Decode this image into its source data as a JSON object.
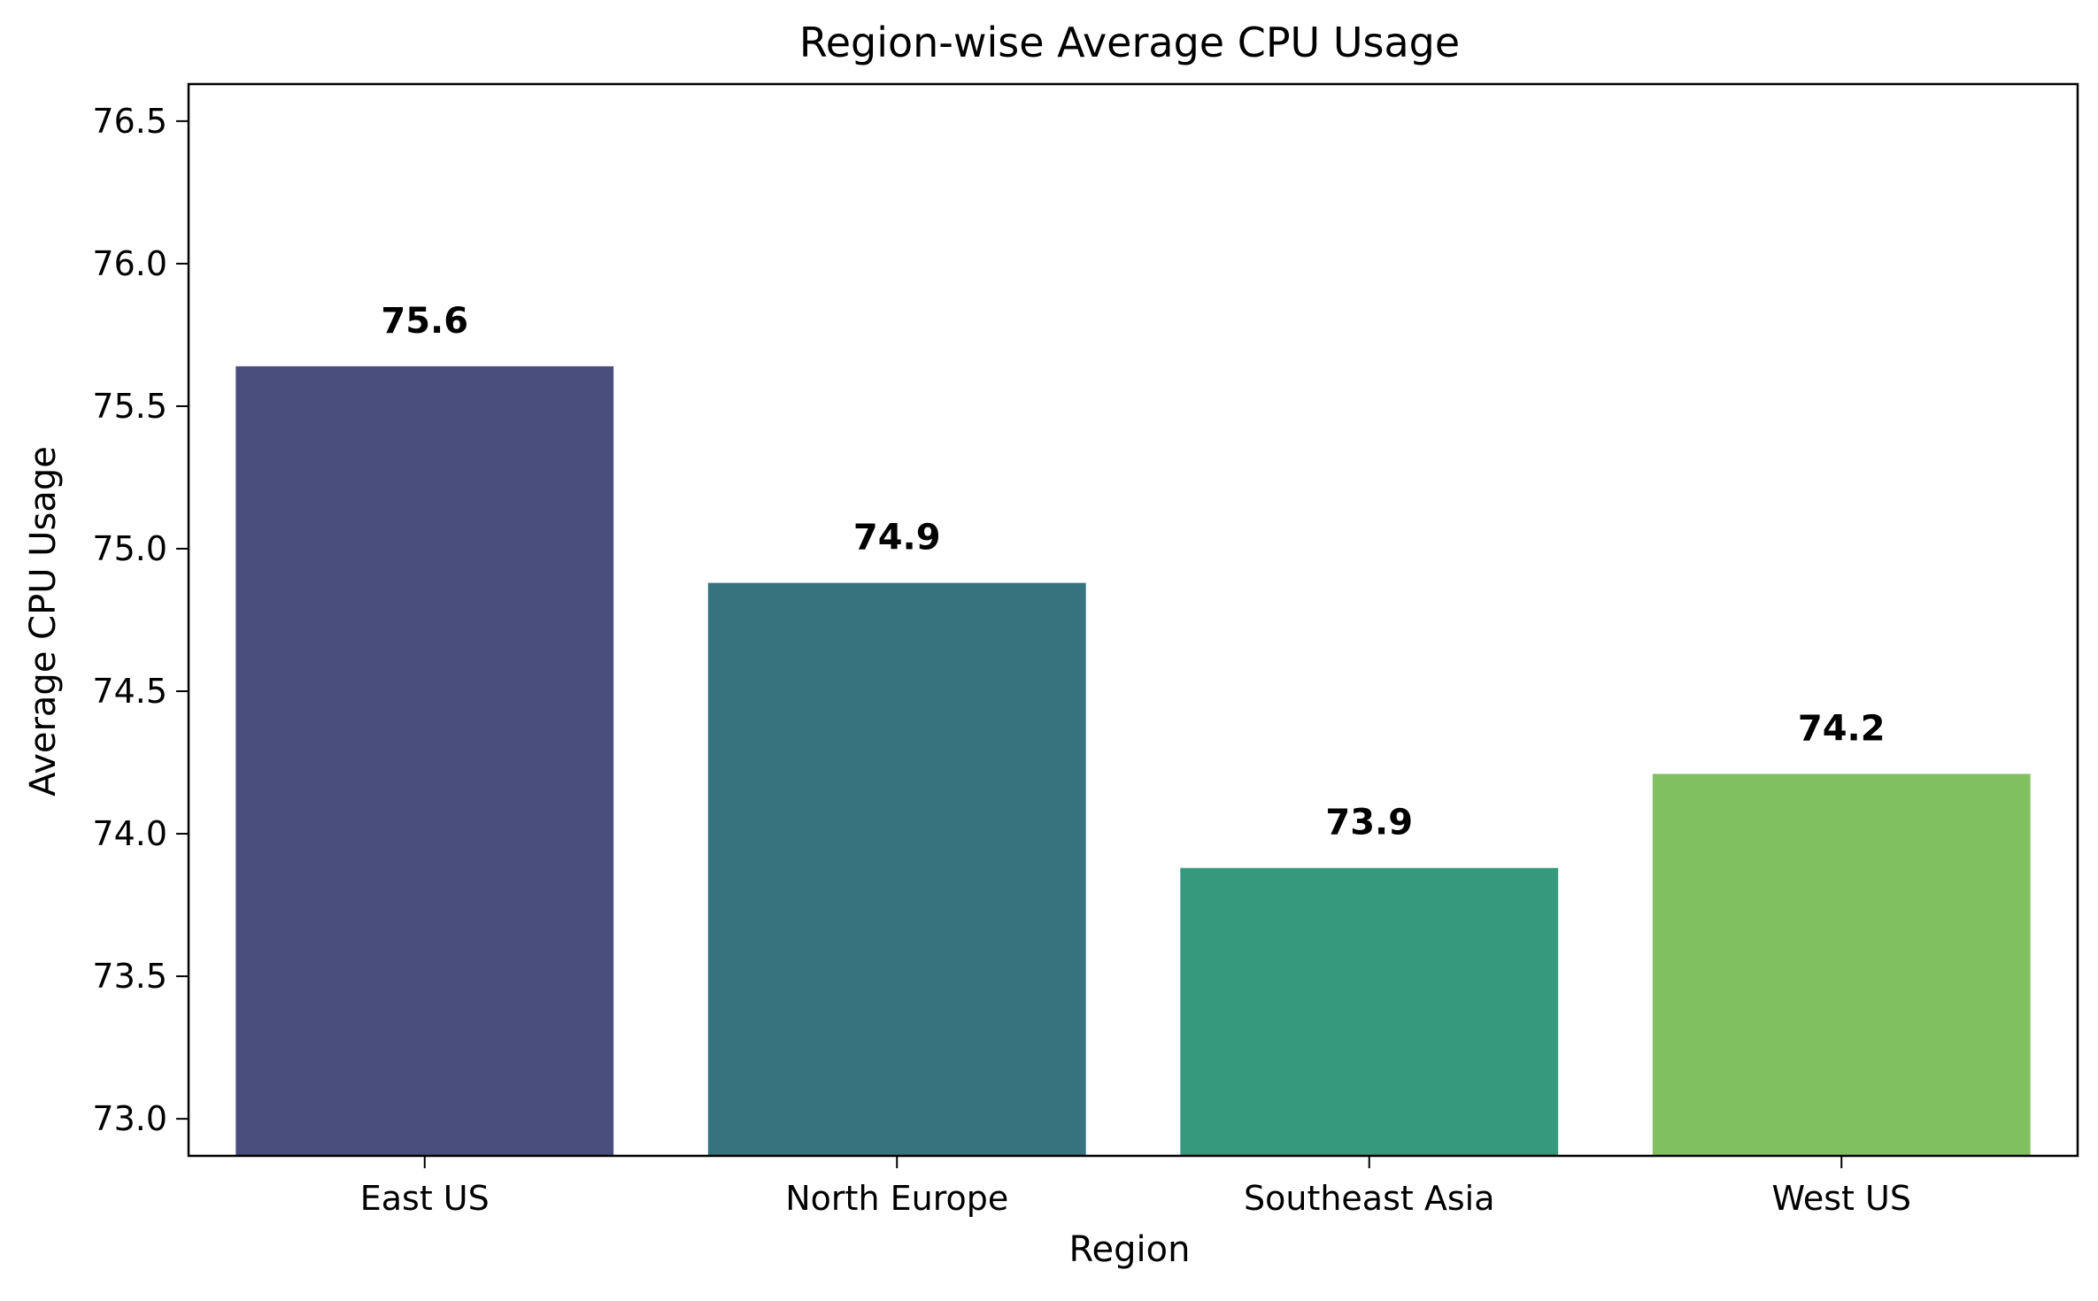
{
  "chart_data": {
    "type": "bar",
    "title": "Region-wise Average CPU Usage",
    "xlabel": "Region",
    "ylabel": "Average CPU Usage",
    "categories": [
      "East US",
      "North Europe",
      "Southeast Asia",
      "West US"
    ],
    "values": [
      75.64,
      74.88,
      73.88,
      74.21
    ],
    "data_labels": [
      "75.6",
      "74.9",
      "73.9",
      "74.2"
    ],
    "colors": [
      "#4a4e7c",
      "#37727f",
      "#36987c",
      "#80c060"
    ],
    "ylim": [
      72.87,
      76.63
    ],
    "yticks": [
      73.0,
      73.5,
      74.0,
      74.5,
      75.0,
      75.5,
      76.0,
      76.5
    ],
    "ytick_labels": [
      "73.0",
      "73.5",
      "74.0",
      "74.5",
      "75.0",
      "75.5",
      "76.0",
      "76.5"
    ],
    "grid": false,
    "legend": "none"
  }
}
